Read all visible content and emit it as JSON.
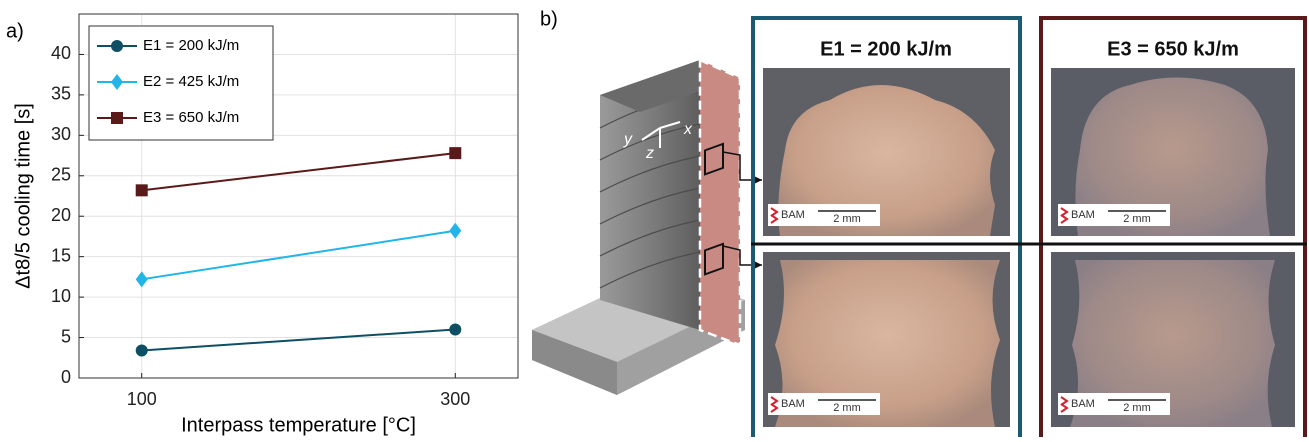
{
  "chart_data": {
    "type": "line",
    "panel_label": "a)",
    "x_label": "Interpass temperature [°C]",
    "y_label": "Δt8/5 cooling time [s]",
    "x": [
      100,
      300
    ],
    "series": [
      {
        "name": "E1 = 200 kJ/m",
        "color": "#0e4f66",
        "marker": "circle",
        "values": [
          3.4,
          6.0
        ]
      },
      {
        "name": "E2 = 425 kJ/m",
        "color": "#22b5e8",
        "marker": "diamond",
        "values": [
          12.2,
          18.2
        ]
      },
      {
        "name": "E3 = 650 kJ/m",
        "color": "#5a1a1a",
        "marker": "square",
        "values": [
          23.2,
          27.8
        ]
      }
    ],
    "xlim": [
      60,
      340
    ],
    "xticks": [
      100,
      300
    ],
    "ylim": [
      0,
      45
    ],
    "yticks": [
      0,
      5,
      10,
      15,
      20,
      25,
      30,
      35,
      40
    ],
    "grid": true,
    "legend": "top-left"
  },
  "panel_b": {
    "label": "b)",
    "axes": [
      "x",
      "y",
      "z"
    ],
    "columns": [
      {
        "title": "E1 = 200 kJ/m",
        "images": [
          {
            "logo": "BAM",
            "scale": "2 mm"
          },
          {
            "logo": "BAM",
            "scale": "2 mm"
          }
        ]
      },
      {
        "title": "E3 = 650 kJ/m",
        "images": [
          {
            "logo": "BAM",
            "scale": "2 mm"
          },
          {
            "logo": "BAM",
            "scale": "2 mm"
          }
        ]
      }
    ]
  }
}
